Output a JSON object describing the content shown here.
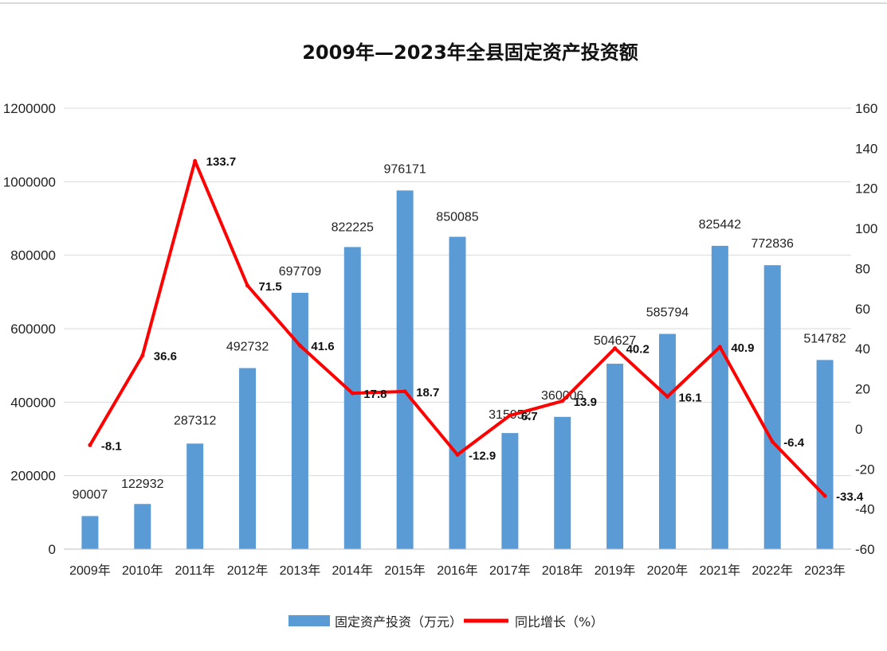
{
  "chart_data": {
    "type": "bar",
    "title": "2009年—2023年全县固定资产投资额",
    "categories": [
      "2009年",
      "2010年",
      "2011年",
      "2012年",
      "2013年",
      "2014年",
      "2015年",
      "2016年",
      "2017年",
      "2018年",
      "2019年",
      "2020年",
      "2021年",
      "2022年",
      "2023年"
    ],
    "series": [
      {
        "name": "固定资产投资（万元）",
        "type": "bar",
        "axis": "left",
        "color": "#5b9bd5",
        "values": [
          90007,
          122932,
          287312,
          492732,
          697709,
          822225,
          976171,
          850085,
          315952,
          360006,
          504627,
          585794,
          825442,
          772836,
          514782
        ]
      },
      {
        "name": "同比增长（%）",
        "type": "line",
        "axis": "right",
        "color": "#ff0000",
        "values": [
          -8.1,
          36.6,
          133.7,
          71.5,
          41.6,
          17.8,
          18.7,
          -12.9,
          6.7,
          13.9,
          40.2,
          16.1,
          40.9,
          -6.4,
          -33.4
        ]
      }
    ],
    "y_left": {
      "min": 0,
      "max": 1200000,
      "ticks": [
        0,
        200000,
        400000,
        600000,
        800000,
        1000000,
        1200000
      ]
    },
    "y_right": {
      "min": -60,
      "max": 160,
      "ticks": [
        -60,
        -40,
        -20,
        0,
        20,
        40,
        60,
        80,
        100,
        120,
        140,
        160
      ]
    },
    "grid": true,
    "legend_position": "bottom"
  }
}
